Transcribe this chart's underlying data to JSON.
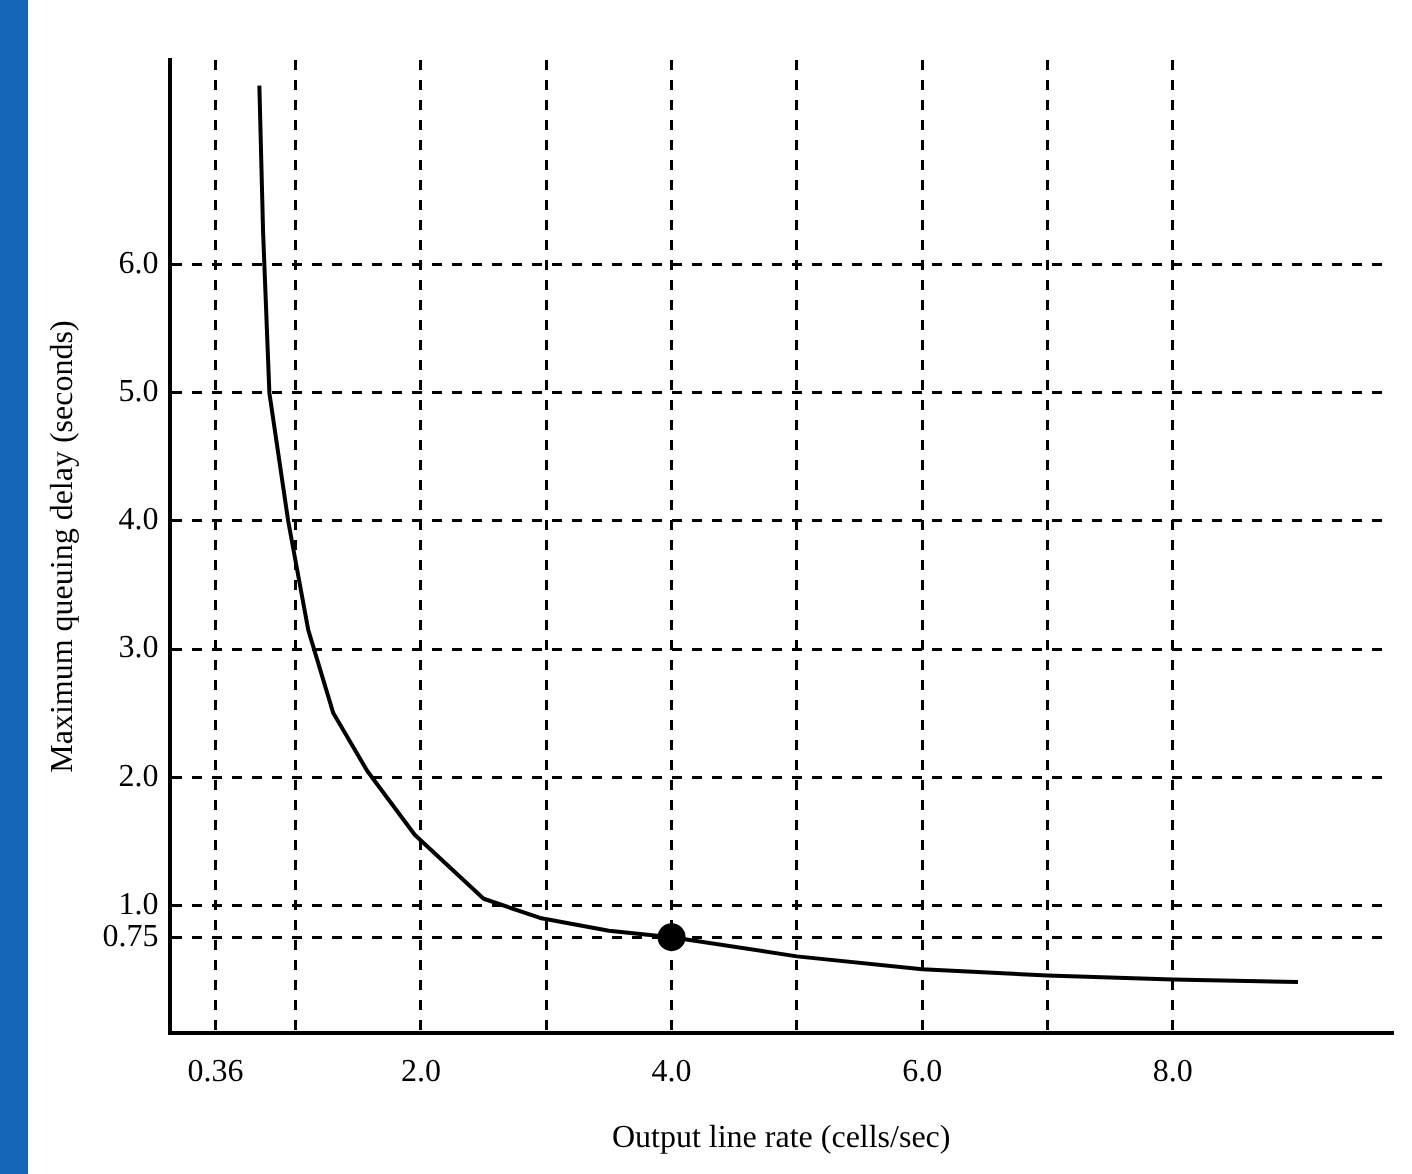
{
  "chart_data": {
    "type": "line",
    "xlabel": "Output line rate (cells/sec)",
    "ylabel": "Maximum queuing delay (seconds)",
    "xlim": [
      0,
      9.75
    ],
    "ylim": [
      0,
      7.6
    ],
    "xticks": [
      0.36,
      {
        "value": 1,
        "label": null
      },
      {
        "value": 2,
        "label": "2.0"
      },
      {
        "value": 3,
        "label": null
      },
      {
        "value": 4,
        "label": "4.0"
      },
      {
        "value": 5,
        "label": null
      },
      {
        "value": 6,
        "label": "6.0"
      },
      {
        "value": 7,
        "label": null
      },
      {
        "value": 8,
        "label": "8.0"
      }
    ],
    "yticks": [
      0.75,
      {
        "value": 1,
        "label": "1.0"
      },
      {
        "value": 2,
        "label": "2.0"
      },
      {
        "value": 3,
        "label": "3.0"
      },
      {
        "value": 4,
        "label": "4.0"
      },
      {
        "value": 5,
        "label": "5.0"
      },
      {
        "value": 6,
        "label": "6.0"
      }
    ],
    "grid": true,
    "legend": false,
    "series": [
      {
        "type": "line",
        "color": "#000000",
        "marker": "none",
        "line_style": "solid",
        "x": [
          0.71,
          0.74,
          0.79,
          0.94,
          1.1,
          1.3,
          1.57,
          1.95,
          2.5,
          2.95,
          3.5,
          4.0,
          5.0,
          6.0,
          7.0,
          8.0,
          9.0
        ],
        "values": [
          7.4,
          6.25,
          5.0,
          4.0,
          3.15,
          2.5,
          2.05,
          1.55,
          1.05,
          0.9,
          0.8,
          0.75,
          0.6,
          0.5,
          0.45,
          0.42,
          0.4
        ]
      },
      {
        "type": "scatter",
        "color": "#000000",
        "marker": "circle",
        "x": [
          4.0
        ],
        "values": [
          0.75
        ]
      }
    ]
  }
}
